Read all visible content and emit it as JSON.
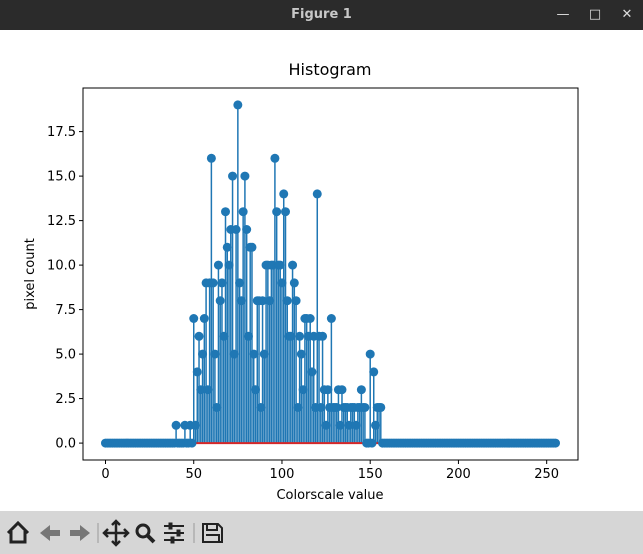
{
  "window": {
    "title": "Figure 1"
  },
  "chart_data": {
    "type": "stem",
    "title": "Histogram",
    "xlabel": "Colorscale value",
    "ylabel": "pixel count",
    "color": "#1f77b4",
    "baseline_color": "#d62728",
    "x": [
      0,
      1,
      2,
      3,
      4,
      5,
      6,
      7,
      8,
      9,
      10,
      11,
      12,
      13,
      14,
      15,
      16,
      17,
      18,
      19,
      20,
      21,
      22,
      23,
      24,
      25,
      26,
      27,
      28,
      29,
      30,
      31,
      32,
      33,
      34,
      35,
      36,
      37,
      38,
      39,
      40,
      41,
      42,
      43,
      44,
      45,
      46,
      47,
      48,
      49,
      50,
      51,
      52,
      53,
      54,
      55,
      56,
      57,
      58,
      59,
      60,
      61,
      62,
      63,
      64,
      65,
      66,
      67,
      68,
      69,
      70,
      71,
      72,
      73,
      74,
      75,
      76,
      77,
      78,
      79,
      80,
      81,
      82,
      83,
      84,
      85,
      86,
      87,
      88,
      89,
      90,
      91,
      92,
      93,
      94,
      95,
      96,
      97,
      98,
      99,
      100,
      101,
      102,
      103,
      104,
      105,
      106,
      107,
      108,
      109,
      110,
      111,
      112,
      113,
      114,
      115,
      116,
      117,
      118,
      119,
      120,
      121,
      122,
      123,
      124,
      125,
      126,
      127,
      128,
      129,
      130,
      131,
      132,
      133,
      134,
      135,
      136,
      137,
      138,
      139,
      140,
      141,
      142,
      143,
      144,
      145,
      146,
      147,
      148,
      149,
      150,
      151,
      152,
      153,
      154,
      155,
      156,
      157,
      158,
      159,
      160,
      161,
      162,
      163,
      164,
      165,
      166,
      167,
      168,
      169,
      170,
      171,
      172,
      173,
      174,
      175,
      176,
      177,
      178,
      179,
      180,
      181,
      182,
      183,
      184,
      185,
      186,
      187,
      188,
      189,
      190,
      191,
      192,
      193,
      194,
      195,
      196,
      197,
      198,
      199,
      200,
      201,
      202,
      203,
      204,
      205,
      206,
      207,
      208,
      209,
      210,
      211,
      212,
      213,
      214,
      215,
      216,
      217,
      218,
      219,
      220,
      221,
      222,
      223,
      224,
      225,
      226,
      227,
      228,
      229,
      230,
      231,
      232,
      233,
      234,
      235,
      236,
      237,
      238,
      239,
      240,
      241,
      242,
      243,
      244,
      245,
      246,
      247,
      248,
      249,
      250,
      251,
      252,
      253,
      254,
      255
    ],
    "values": [
      0,
      0,
      0,
      0,
      0,
      0,
      0,
      0,
      0,
      0,
      0,
      0,
      0,
      0,
      0,
      0,
      0,
      0,
      0,
      0,
      0,
      0,
      0,
      0,
      0,
      0,
      0,
      0,
      0,
      0,
      0,
      0,
      0,
      0,
      0,
      0,
      0,
      0,
      0,
      0,
      1,
      0,
      0,
      0,
      0,
      1,
      0,
      0,
      1,
      0,
      7,
      1,
      4,
      6,
      3,
      5,
      7,
      9,
      3,
      9,
      16,
      9,
      5,
      2,
      10,
      8,
      9,
      6,
      13,
      11,
      10,
      12,
      15,
      5,
      12,
      19,
      9,
      8,
      13,
      15,
      12,
      6,
      11,
      11,
      5,
      3,
      8,
      8,
      2,
      8,
      5,
      10,
      10,
      8,
      10,
      10,
      16,
      13,
      10,
      10,
      9,
      14,
      13,
      8,
      6,
      6,
      10,
      9,
      8,
      2,
      6,
      5,
      3,
      7,
      7,
      6,
      7,
      4,
      6,
      2,
      14,
      6,
      2,
      6,
      3,
      1,
      3,
      2,
      7,
      2,
      2,
      2,
      3,
      1,
      3,
      2,
      2,
      2,
      1,
      2,
      2,
      2,
      1,
      2,
      2,
      3,
      2,
      2,
      0,
      0,
      5,
      0,
      4,
      1,
      2,
      2,
      2,
      0,
      0,
      0,
      0,
      0,
      0,
      0,
      0,
      0,
      0,
      0,
      0,
      0,
      0,
      0,
      0,
      0,
      0,
      0,
      0,
      0,
      0,
      0,
      0,
      0,
      0,
      0,
      0,
      0,
      0,
      0,
      0,
      0,
      0,
      0,
      0,
      0,
      0,
      0,
      0,
      0,
      0,
      0,
      0,
      0,
      0,
      0,
      0,
      0,
      0,
      0,
      0,
      0,
      0,
      0,
      0,
      0,
      0,
      0,
      0,
      0,
      0,
      0,
      0,
      0,
      0,
      0,
      0,
      0,
      0,
      0,
      0,
      0,
      0,
      0,
      0,
      0,
      0,
      0,
      0,
      0,
      0,
      0,
      0,
      0,
      0,
      0,
      0,
      0,
      0,
      0,
      0,
      0,
      0,
      0,
      0,
      0,
      0,
      0
    ],
    "xlim": [
      -12.75,
      267.75
    ],
    "xticks": [
      0,
      50,
      100,
      150,
      200,
      250
    ],
    "ylim": [
      -0.95,
      19.95
    ],
    "yticks": [
      {
        "value": 0,
        "label": "0.0"
      },
      2.5,
      {
        "value": 5,
        "label": "5.0"
      },
      7.5,
      {
        "value": 10,
        "label": "10.0"
      },
      12.5,
      {
        "value": 15,
        "label": "15.0"
      },
      17.5
    ]
  }
}
